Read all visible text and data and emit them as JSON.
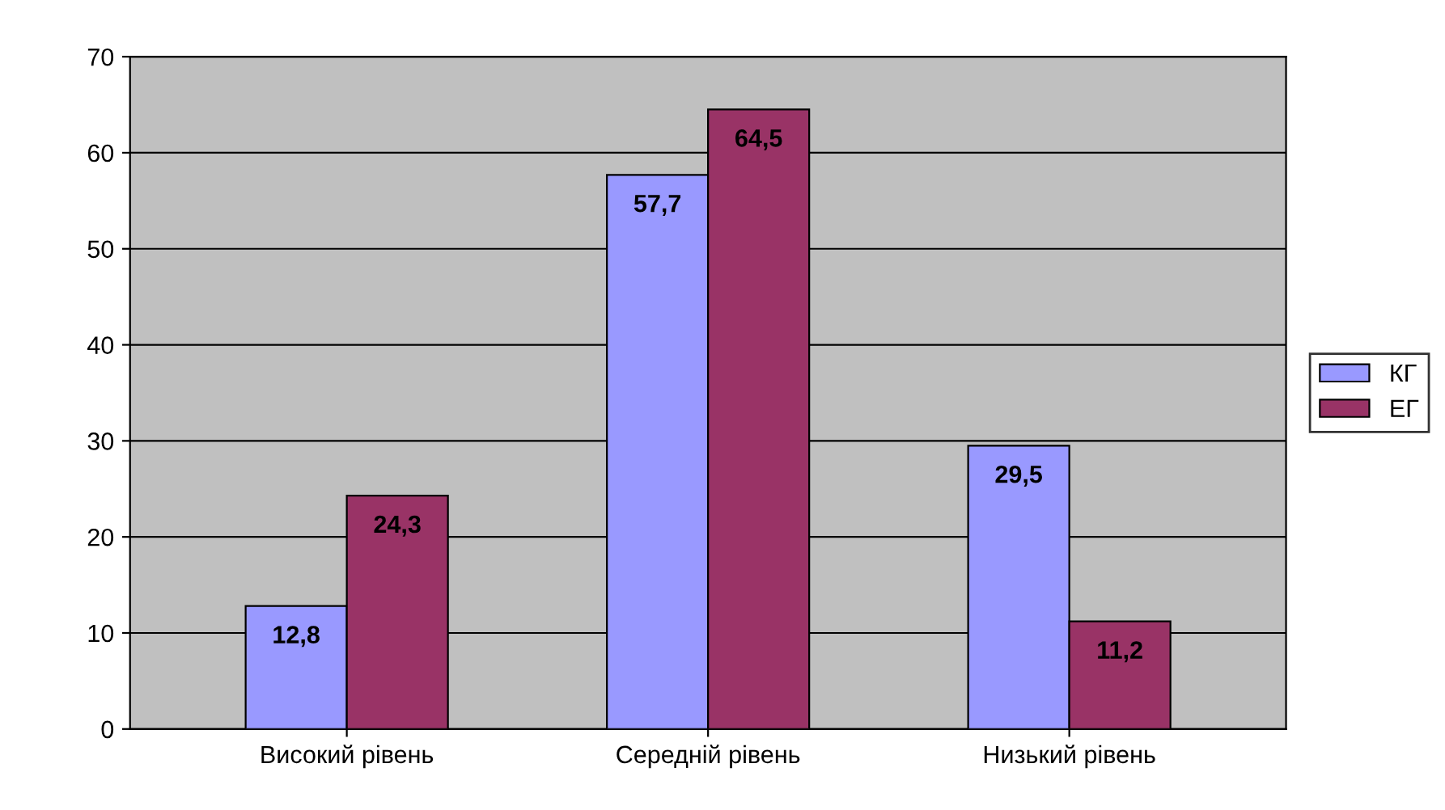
{
  "chart_data": {
    "type": "bar",
    "categories": [
      "Високий рівень",
      "Середній рівень",
      "Низький рівень"
    ],
    "series": [
      {
        "name": "КГ",
        "color": "#9999ff",
        "values": [
          12.8,
          57.7,
          29.5
        ],
        "value_labels": [
          "12,8",
          "57,7",
          "29,5"
        ]
      },
      {
        "name": "ЕГ",
        "color": "#993366",
        "values": [
          24.3,
          64.5,
          11.2
        ],
        "value_labels": [
          "24,3",
          "64,5",
          "11,2"
        ]
      }
    ],
    "ylim": [
      0,
      70
    ],
    "yticks": [
      0,
      10,
      20,
      30,
      40,
      50,
      60,
      70
    ],
    "grid": "y",
    "legend": "right"
  }
}
